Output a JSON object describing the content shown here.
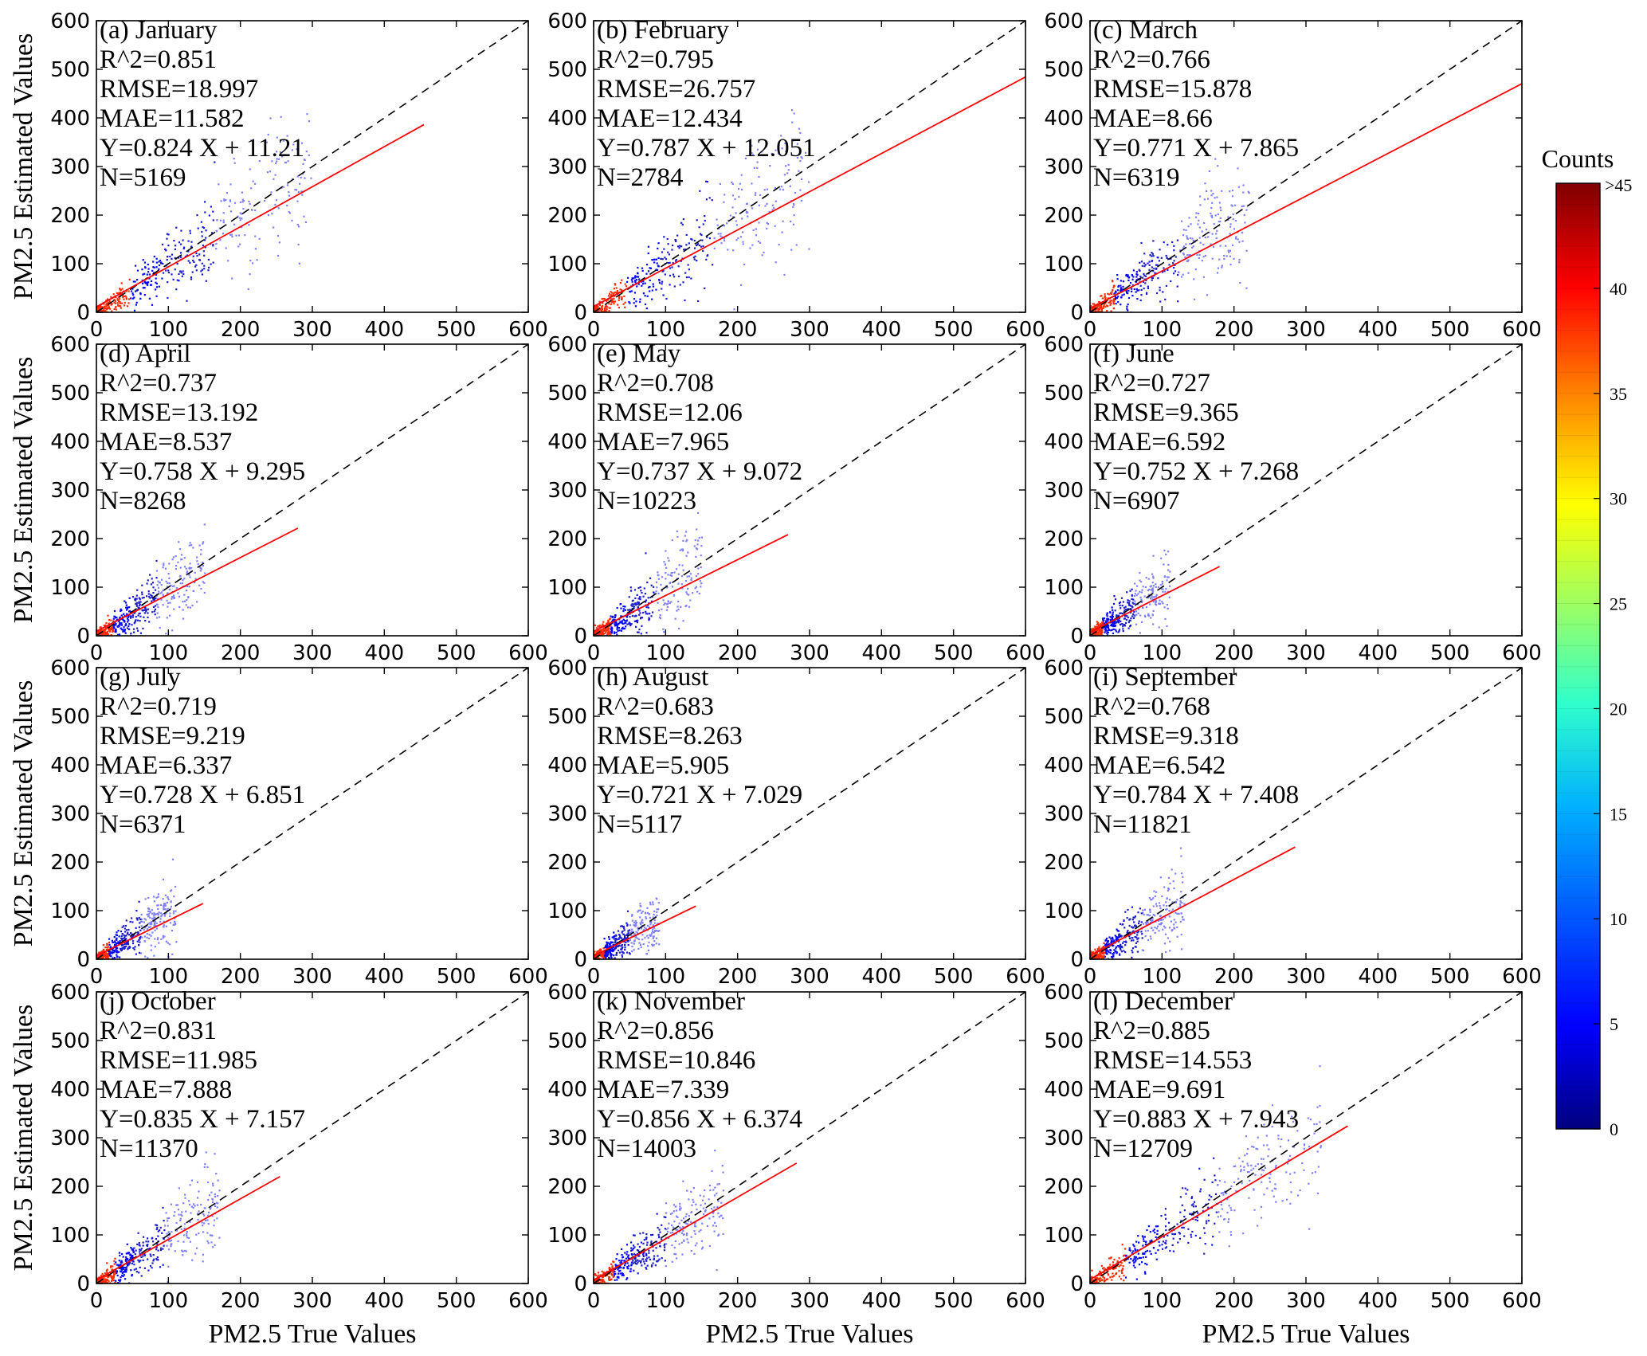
{
  "figure": {
    "xlabel": "PM2.5 True Values",
    "ylabel": "PM2.5 Estimated Values"
  },
  "colorbar": {
    "title": "Counts",
    "min": 0,
    "max": 45,
    "ticks": [
      "0",
      "5",
      "10",
      "15",
      "20",
      "25",
      "30",
      "35",
      "40"
    ],
    "top_label": ">45",
    "colors": [
      "#00007f",
      "#0000ff",
      "#007fff",
      "#00ffff",
      "#7fff7f",
      "#ffff00",
      "#ff7f00",
      "#ff0000",
      "#7f0000"
    ]
  },
  "chart_data": [
    {
      "type": "scatter",
      "panel": "(a) January",
      "xlim": [
        0,
        600
      ],
      "ylim": [
        0,
        600
      ],
      "ticks": [
        0,
        100,
        200,
        300,
        400,
        500,
        600
      ],
      "stats": {
        "r2": "R^2=0.851",
        "rmse": "RMSE=18.997",
        "mae": "MAE=11.582",
        "fit": "Y=0.824 X + 11.21",
        "n": "N=5169"
      },
      "fit_line": {
        "slope": 0.824,
        "intercept": 11.21,
        "x_max": 455
      },
      "identity_line": true,
      "spread": {
        "x_range": [
          0,
          300
        ],
        "ratio": 0.25
      }
    },
    {
      "type": "scatter",
      "panel": "(b) February",
      "xlim": [
        0,
        600
      ],
      "ylim": [
        0,
        600
      ],
      "ticks": [
        0,
        100,
        200,
        300,
        400,
        500,
        600
      ],
      "stats": {
        "r2": "R^2=0.795",
        "rmse": "RMSE=26.757",
        "mae": "MAE=12.434",
        "fit": "Y=0.787 X + 12.051",
        "n": "N=2784"
      },
      "fit_line": {
        "slope": 0.787,
        "intercept": 12.051,
        "x_max": 600
      },
      "identity_line": true,
      "spread": {
        "x_range": [
          0,
          300
        ],
        "ratio": 0.3
      }
    },
    {
      "type": "scatter",
      "panel": "(c) March",
      "xlim": [
        0,
        600
      ],
      "ylim": [
        0,
        600
      ],
      "ticks": [
        0,
        100,
        200,
        300,
        400,
        500,
        600
      ],
      "stats": {
        "r2": "R^2=0.766",
        "rmse": "RMSE=15.878",
        "mae": "MAE=8.66",
        "fit": "Y=0.771 X + 7.865",
        "n": "N=6319"
      },
      "fit_line": {
        "slope": 0.771,
        "intercept": 7.865,
        "x_max": 600
      },
      "identity_line": true,
      "spread": {
        "x_range": [
          0,
          220
        ],
        "ratio": 0.28
      }
    },
    {
      "type": "scatter",
      "panel": "(d) April",
      "xlim": [
        0,
        600
      ],
      "ylim": [
        0,
        600
      ],
      "ticks": [
        0,
        100,
        200,
        300,
        400,
        500,
        600
      ],
      "stats": {
        "r2": "R^2=0.737",
        "rmse": "RMSE=13.192",
        "mae": "MAE=8.537",
        "fit": "Y=0.758 X + 9.295",
        "n": "N=8268"
      },
      "fit_line": {
        "slope": 0.758,
        "intercept": 9.295,
        "x_max": 280
      },
      "identity_line": true,
      "spread": {
        "x_range": [
          0,
          150
        ],
        "ratio": 0.3
      }
    },
    {
      "type": "scatter",
      "panel": "(e) May",
      "xlim": [
        0,
        600
      ],
      "ylim": [
        0,
        600
      ],
      "ticks": [
        0,
        100,
        200,
        300,
        400,
        500,
        600
      ],
      "stats": {
        "r2": "R^2=0.708",
        "rmse": "RMSE=12.06",
        "mae": "MAE=7.965",
        "fit": "Y=0.737 X + 9.072",
        "n": "N=10223"
      },
      "fit_line": {
        "slope": 0.737,
        "intercept": 9.072,
        "x_max": 270
      },
      "identity_line": true,
      "spread": {
        "x_range": [
          0,
          150
        ],
        "ratio": 0.32
      }
    },
    {
      "type": "scatter",
      "panel": "(f) June",
      "xlim": [
        0,
        600
      ],
      "ylim": [
        0,
        600
      ],
      "ticks": [
        0,
        100,
        200,
        300,
        400,
        500,
        600
      ],
      "stats": {
        "r2": "R^2=0.727",
        "rmse": "RMSE=9.365",
        "mae": "MAE=6.592",
        "fit": "Y=0.752 X + 7.268",
        "n": "N=6907"
      },
      "fit_line": {
        "slope": 0.752,
        "intercept": 7.268,
        "x_max": 180
      },
      "identity_line": true,
      "spread": {
        "x_range": [
          0,
          110
        ],
        "ratio": 0.3
      }
    },
    {
      "type": "scatter",
      "panel": "(g) July",
      "xlim": [
        0,
        600
      ],
      "ylim": [
        0,
        600
      ],
      "ticks": [
        0,
        100,
        200,
        300,
        400,
        500,
        600
      ],
      "stats": {
        "r2": "R^2=0.719",
        "rmse": "RMSE=9.219",
        "mae": "MAE=6.337",
        "fit": "Y=0.728 X + 6.851",
        "n": "N=6371"
      },
      "fit_line": {
        "slope": 0.728,
        "intercept": 6.851,
        "x_max": 148
      },
      "identity_line": true,
      "spread": {
        "x_range": [
          0,
          110
        ],
        "ratio": 0.3
      }
    },
    {
      "type": "scatter",
      "panel": "(h) August",
      "xlim": [
        0,
        600
      ],
      "ylim": [
        0,
        600
      ],
      "ticks": [
        0,
        100,
        200,
        300,
        400,
        500,
        600
      ],
      "stats": {
        "r2": "R^2=0.683",
        "rmse": "RMSE=8.263",
        "mae": "MAE=5.905",
        "fit": "Y=0.721 X + 7.029",
        "n": "N=5117"
      },
      "fit_line": {
        "slope": 0.721,
        "intercept": 7.029,
        "x_max": 142
      },
      "identity_line": true,
      "spread": {
        "x_range": [
          0,
          90
        ],
        "ratio": 0.3
      }
    },
    {
      "type": "scatter",
      "panel": "(i) September",
      "xlim": [
        0,
        600
      ],
      "ylim": [
        0,
        600
      ],
      "ticks": [
        0,
        100,
        200,
        300,
        400,
        500,
        600
      ],
      "stats": {
        "r2": "R^2=0.768",
        "rmse": "RMSE=9.318",
        "mae": "MAE=6.542",
        "fit": "Y=0.784 X + 7.408",
        "n": "N=11821"
      },
      "fit_line": {
        "slope": 0.784,
        "intercept": 7.408,
        "x_max": 285
      },
      "identity_line": true,
      "spread": {
        "x_range": [
          0,
          130
        ],
        "ratio": 0.28
      }
    },
    {
      "type": "scatter",
      "panel": "(j) October",
      "xlim": [
        0,
        600
      ],
      "ylim": [
        0,
        600
      ],
      "ticks": [
        0,
        100,
        200,
        300,
        400,
        500,
        600
      ],
      "stats": {
        "r2": "R^2=0.831",
        "rmse": "RMSE=11.985",
        "mae": "MAE=7.888",
        "fit": "Y=0.835 X + 7.157",
        "n": "N=11370"
      },
      "fit_line": {
        "slope": 0.835,
        "intercept": 7.157,
        "x_max": 255
      },
      "identity_line": true,
      "spread": {
        "x_range": [
          0,
          170
        ],
        "ratio": 0.25
      }
    },
    {
      "type": "scatter",
      "panel": "(k) November",
      "xlim": [
        0,
        600
      ],
      "ylim": [
        0,
        600
      ],
      "ticks": [
        0,
        100,
        200,
        300,
        400,
        500,
        600
      ],
      "stats": {
        "r2": "R^2=0.856",
        "rmse": "RMSE=10.846",
        "mae": "MAE=7.339",
        "fit": "Y=0.856 X + 6.374",
        "n": "N=14003"
      },
      "fit_line": {
        "slope": 0.856,
        "intercept": 6.374,
        "x_max": 282
      },
      "identity_line": true,
      "spread": {
        "x_range": [
          0,
          180
        ],
        "ratio": 0.24
      }
    },
    {
      "type": "scatter",
      "panel": "(l) December",
      "xlim": [
        0,
        600
      ],
      "ylim": [
        0,
        600
      ],
      "ticks": [
        0,
        100,
        200,
        300,
        400,
        500,
        600
      ],
      "stats": {
        "r2": "R^2=0.885",
        "rmse": "RMSE=14.553",
        "mae": "MAE=9.691",
        "fit": "Y=0.883 X + 7.943",
        "n": "N=12709"
      },
      "fit_line": {
        "slope": 0.883,
        "intercept": 7.943,
        "x_max": 358
      },
      "identity_line": true,
      "spread": {
        "x_range": [
          0,
          320
        ],
        "ratio": 0.2
      }
    }
  ]
}
